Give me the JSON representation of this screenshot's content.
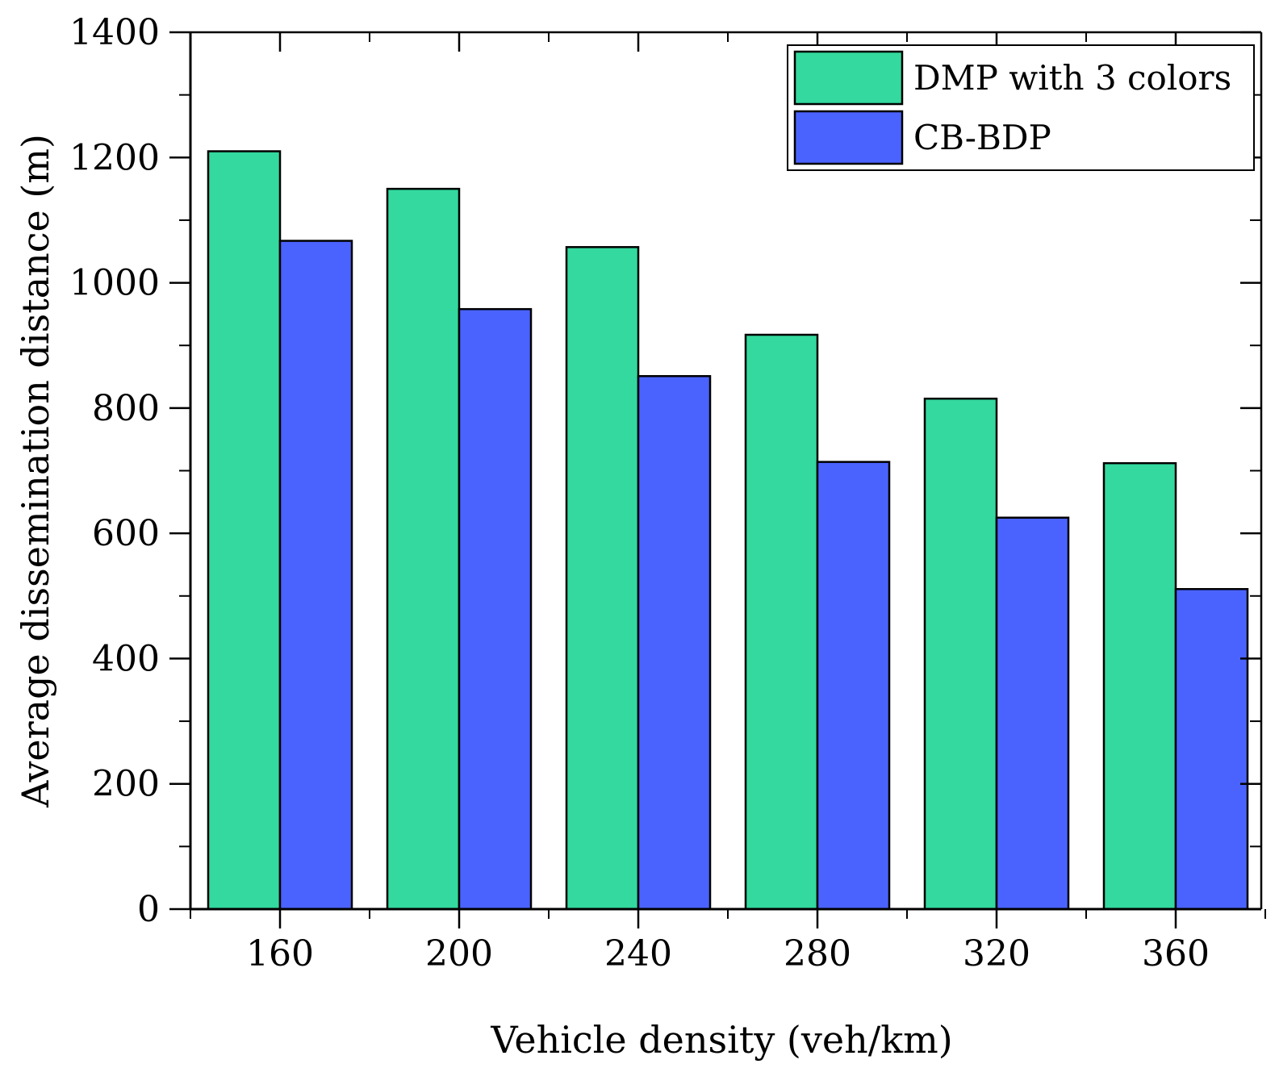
{
  "chart_data": {
    "type": "bar",
    "title": "",
    "xlabel": "Vehicle density (veh/km)",
    "ylabel": "Average dissemination distance (m)",
    "categories": [
      "160",
      "200",
      "240",
      "280",
      "320",
      "360"
    ],
    "ylim": [
      0,
      1400
    ],
    "yticks": [
      0,
      200,
      400,
      600,
      800,
      1000,
      1200,
      1400
    ],
    "grid": false,
    "legend_position": "top-right",
    "series": [
      {
        "name": "DMP with 3 colors",
        "color": "#33d99e",
        "values": [
          1210,
          1150,
          1057,
          917,
          815,
          712
        ]
      },
      {
        "name": "CB-BDP",
        "color": "#4a63ff",
        "values": [
          1067,
          958,
          851,
          714,
          625,
          511
        ]
      }
    ]
  }
}
